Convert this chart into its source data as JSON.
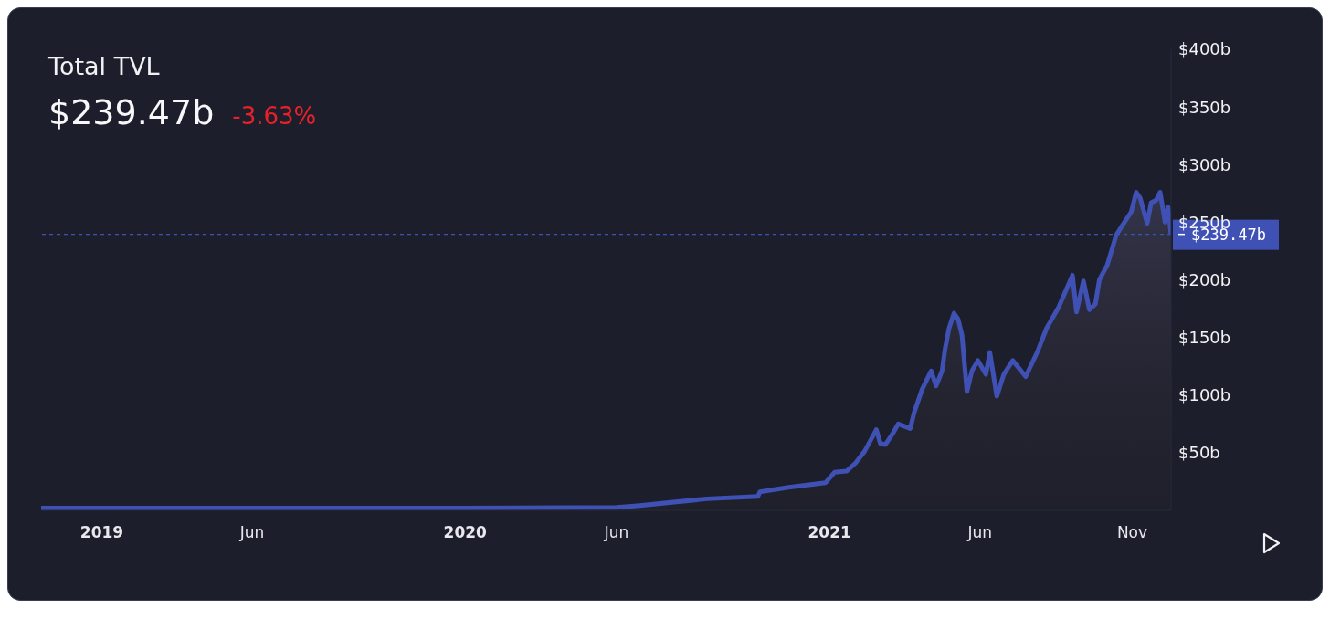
{
  "chart_data": {
    "type": "area",
    "title": "Total TVL",
    "subtitle": "$239.47b",
    "annotations": [
      "-3.63%"
    ],
    "x": [
      "2018-11-01",
      "2019-06-01",
      "2020-01-01",
      "2020-06-01",
      "2020-06-22",
      "2020-08-31",
      "2020-10-21",
      "2020-10-23",
      "2020-11-21",
      "2020-12-28",
      "2021-01-06",
      "2021-01-18",
      "2021-01-27",
      "2021-02-05",
      "2021-02-17",
      "2021-02-21",
      "2021-02-26",
      "2021-03-05",
      "2021-03-11",
      "2021-03-23",
      "2021-03-27",
      "2021-04-04",
      "2021-04-13",
      "2021-04-18",
      "2021-04-24",
      "2021-04-27",
      "2021-05-01",
      "2021-05-06",
      "2021-05-10",
      "2021-05-14",
      "2021-05-19",
      "2021-05-24",
      "2021-05-30",
      "2021-06-07",
      "2021-06-11",
      "2021-06-18",
      "2021-06-25",
      "2021-07-04",
      "2021-07-17",
      "2021-07-29",
      "2021-08-07",
      "2021-08-19",
      "2021-09-02",
      "2021-09-06",
      "2021-09-13",
      "2021-09-19",
      "2021-09-25",
      "2021-09-29",
      "2021-10-07",
      "2021-10-16",
      "2021-10-22",
      "2021-10-31",
      "2021-11-05",
      "2021-11-09",
      "2021-11-16",
      "2021-11-20",
      "2021-11-25",
      "2021-11-29",
      "2021-12-04",
      "2021-12-07",
      "2021-12-10"
    ],
    "series": [
      {
        "color": "#3f51b5",
        "values": [
          2,
          2,
          2,
          2.5,
          4,
          10,
          12,
          16,
          20,
          24,
          33,
          34,
          41,
          51,
          70,
          58,
          57,
          66,
          75,
          71,
          85,
          105,
          121,
          108,
          121,
          140,
          158,
          171,
          166,
          152,
          103,
          121,
          130,
          118,
          137,
          99,
          118,
          130,
          116,
          138,
          158,
          176,
          204,
          172,
          199,
          174,
          179,
          200,
          213,
          239,
          247,
          259,
          276,
          271,
          249,
          267,
          269,
          276,
          250,
          263,
          239.5
        ]
      }
    ],
    "xlim": [
      "2018-11-01",
      "2021-12-10"
    ],
    "xticks": [
      {
        "value": "2019-01-01",
        "label": "2019"
      },
      {
        "value": "2019-06-01",
        "label": "Jun"
      },
      {
        "value": "2020-01-01",
        "label": "2020"
      },
      {
        "value": "2020-06-01",
        "label": "Jun"
      },
      {
        "value": "2021-01-01",
        "label": "2021"
      },
      {
        "value": "2021-06-01",
        "label": "Jun"
      },
      {
        "value": "2021-11-01",
        "label": "Nov"
      }
    ],
    "ylim": [
      0,
      400
    ],
    "yticks": [
      {
        "value": 50,
        "label": "$50b"
      },
      {
        "value": 100,
        "label": "$100b"
      },
      {
        "value": 150,
        "label": "$150b"
      },
      {
        "value": 200,
        "label": "$200b"
      },
      {
        "value": 250,
        "label": "$250b"
      },
      {
        "value": 300,
        "label": "$300b"
      },
      {
        "value": 350,
        "label": "$350b"
      },
      {
        "value": 400,
        "label": "$400b"
      }
    ],
    "ref_lines": [
      {
        "axis": "y",
        "value": 239.47,
        "label": "$239.47b",
        "color": "#3f51b5",
        "line_style": "dashed"
      }
    ]
  }
}
